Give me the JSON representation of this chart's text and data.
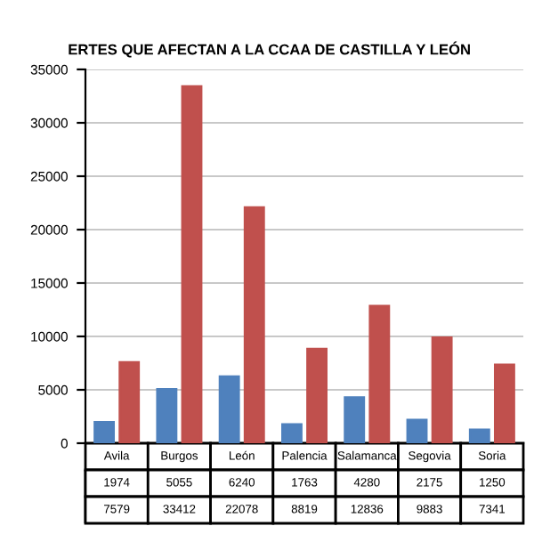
{
  "chart_data": {
    "type": "bar",
    "title": "ERTES QUE AFECTAN A LA CCAA DE CASTILLA Y LEÓN",
    "categories": [
      "Avila",
      "Burgos",
      "León",
      "Palencia",
      "Salamanca",
      "Segovia",
      "Soria"
    ],
    "series": [
      {
        "color": "#4f81bd",
        "values": [
          1974,
          5055,
          6240,
          1763,
          4280,
          2175,
          1250
        ]
      },
      {
        "color": "#c0504d",
        "values": [
          7579,
          33412,
          22078,
          8819,
          12836,
          9883,
          7341
        ]
      }
    ],
    "ylim": [
      0,
      35000
    ],
    "yticks": [
      0,
      5000,
      10000,
      15000,
      20000,
      25000,
      30000,
      35000
    ],
    "grid": "y",
    "data_labels": true,
    "legend": false
  }
}
